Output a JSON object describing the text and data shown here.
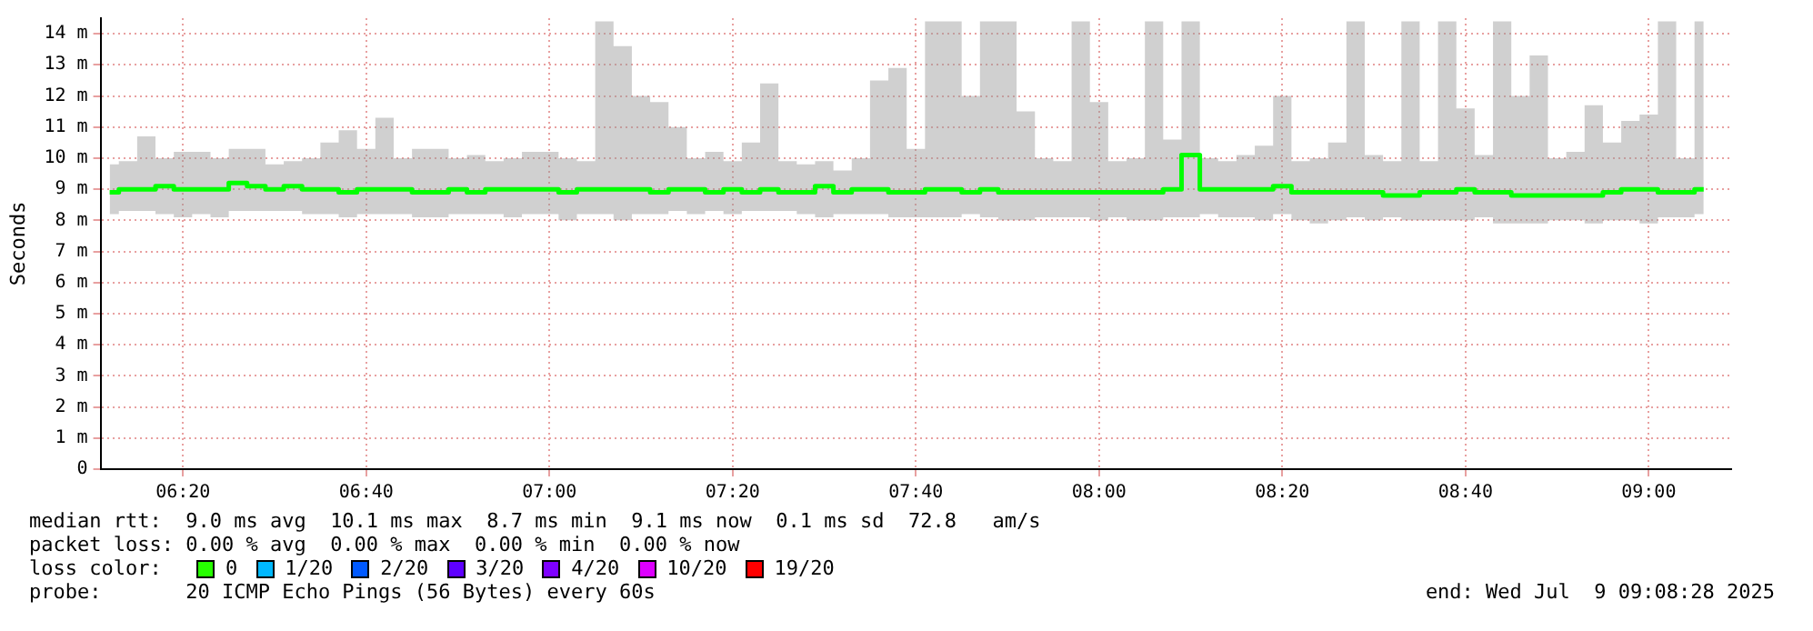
{
  "chart_data": {
    "type": "step",
    "ylabel": "Seconds",
    "grid": true,
    "xlim": [
      "2025-07-09T06:11",
      "2025-07-09T09:09"
    ],
    "xticks": [
      {
        "value": "2025-07-09T06:20",
        "label": "06:20"
      },
      {
        "value": "2025-07-09T06:40",
        "label": "06:40"
      },
      {
        "value": "2025-07-09T07:00",
        "label": "07:00"
      },
      {
        "value": "2025-07-09T07:20",
        "label": "07:20"
      },
      {
        "value": "2025-07-09T07:40",
        "label": "07:40"
      },
      {
        "value": "2025-07-09T08:00",
        "label": "08:00"
      },
      {
        "value": "2025-07-09T08:20",
        "label": "08:20"
      },
      {
        "value": "2025-07-09T08:40",
        "label": "08:40"
      },
      {
        "value": "2025-07-09T09:00",
        "label": "09:00"
      }
    ],
    "ylim": [
      0,
      14.5
    ],
    "yticks": [
      0,
      {
        "value": 1,
        "label": "1 m"
      },
      {
        "value": 2,
        "label": "2 m"
      },
      {
        "value": 3,
        "label": "3 m"
      },
      {
        "value": 4,
        "label": "4 m"
      },
      {
        "value": 5,
        "label": "5 m"
      },
      {
        "value": 6,
        "label": "6 m"
      },
      {
        "value": 7,
        "label": "7 m"
      },
      {
        "value": 8,
        "label": "8 m"
      },
      {
        "value": 9,
        "label": "9 m"
      },
      {
        "value": 10,
        "label": "10 m"
      },
      {
        "value": 11,
        "label": "11 m"
      },
      {
        "value": 12,
        "label": "12 m"
      },
      {
        "value": 13,
        "label": "13 m"
      },
      {
        "value": 14,
        "label": "14 m"
      }
    ],
    "x": [
      "2025-07-09T06:12",
      "2025-07-09T06:14",
      "2025-07-09T06:16",
      "2025-07-09T06:18",
      "2025-07-09T06:20",
      "2025-07-09T06:22",
      "2025-07-09T06:24",
      "2025-07-09T06:26",
      "2025-07-09T06:28",
      "2025-07-09T06:30",
      "2025-07-09T06:32",
      "2025-07-09T06:34",
      "2025-07-09T06:36",
      "2025-07-09T06:38",
      "2025-07-09T06:40",
      "2025-07-09T06:42",
      "2025-07-09T06:44",
      "2025-07-09T06:46",
      "2025-07-09T06:48",
      "2025-07-09T06:50",
      "2025-07-09T06:52",
      "2025-07-09T06:54",
      "2025-07-09T06:56",
      "2025-07-09T06:58",
      "2025-07-09T07:00",
      "2025-07-09T07:02",
      "2025-07-09T07:04",
      "2025-07-09T07:06",
      "2025-07-09T07:08",
      "2025-07-09T07:10",
      "2025-07-09T07:12",
      "2025-07-09T07:14",
      "2025-07-09T07:16",
      "2025-07-09T07:18",
      "2025-07-09T07:20",
      "2025-07-09T07:22",
      "2025-07-09T07:24",
      "2025-07-09T07:26",
      "2025-07-09T07:28",
      "2025-07-09T07:30",
      "2025-07-09T07:32",
      "2025-07-09T07:34",
      "2025-07-09T07:36",
      "2025-07-09T07:38",
      "2025-07-09T07:40",
      "2025-07-09T07:42",
      "2025-07-09T07:44",
      "2025-07-09T07:46",
      "2025-07-09T07:48",
      "2025-07-09T07:50",
      "2025-07-09T07:52",
      "2025-07-09T07:54",
      "2025-07-09T07:56",
      "2025-07-09T07:58",
      "2025-07-09T08:00",
      "2025-07-09T08:02",
      "2025-07-09T08:04",
      "2025-07-09T08:06",
      "2025-07-09T08:08",
      "2025-07-09T08:10",
      "2025-07-09T08:12",
      "2025-07-09T08:14",
      "2025-07-09T08:16",
      "2025-07-09T08:18",
      "2025-07-09T08:20",
      "2025-07-09T08:22",
      "2025-07-09T08:24",
      "2025-07-09T08:26",
      "2025-07-09T08:28",
      "2025-07-09T08:30",
      "2025-07-09T08:32",
      "2025-07-09T08:34",
      "2025-07-09T08:36",
      "2025-07-09T08:38",
      "2025-07-09T08:40",
      "2025-07-09T08:42",
      "2025-07-09T08:44",
      "2025-07-09T08:46",
      "2025-07-09T08:48",
      "2025-07-09T08:50",
      "2025-07-09T08:52",
      "2025-07-09T08:54",
      "2025-07-09T08:56",
      "2025-07-09T08:58",
      "2025-07-09T09:00",
      "2025-07-09T09:02",
      "2025-07-09T09:04",
      "2025-07-09T09:06"
    ],
    "series": [
      {
        "color": "#00ff00",
        "values": [
          8.9,
          9.0,
          9.0,
          9.1,
          9.0,
          9.0,
          9.0,
          9.2,
          9.1,
          9.0,
          9.1,
          9.0,
          9.0,
          8.9,
          9.0,
          9.0,
          9.0,
          8.9,
          8.9,
          9.0,
          8.9,
          9.0,
          9.0,
          9.0,
          9.0,
          8.9,
          9.0,
          9.0,
          9.0,
          9.0,
          8.9,
          9.0,
          9.0,
          8.9,
          9.0,
          8.9,
          9.0,
          8.9,
          8.9,
          9.1,
          8.9,
          9.0,
          9.0,
          8.9,
          8.9,
          9.0,
          9.0,
          8.9,
          9.0,
          8.9,
          8.9,
          8.9,
          8.9,
          8.9,
          8.9,
          8.9,
          8.9,
          8.9,
          9.0,
          10.1,
          9.0,
          9.0,
          9.0,
          9.0,
          9.1,
          8.9,
          8.9,
          8.9,
          8.9,
          8.9,
          8.8,
          8.8,
          8.9,
          8.9,
          9.0,
          8.9,
          8.9,
          8.8,
          8.8,
          8.8,
          8.8,
          8.8,
          8.9,
          9.0,
          9.0,
          8.9,
          8.9,
          9.0
        ],
        "lower": [
          8.2,
          8.3,
          8.3,
          8.2,
          8.1,
          8.2,
          8.1,
          8.3,
          8.3,
          8.3,
          8.3,
          8.2,
          8.2,
          8.1,
          8.2,
          8.2,
          8.2,
          8.1,
          8.1,
          8.2,
          8.2,
          8.2,
          8.1,
          8.2,
          8.2,
          8.0,
          8.2,
          8.2,
          8.0,
          8.2,
          8.2,
          8.3,
          8.2,
          8.3,
          8.2,
          8.3,
          8.3,
          8.3,
          8.2,
          8.1,
          8.2,
          8.2,
          8.2,
          8.1,
          8.1,
          8.1,
          8.1,
          8.2,
          8.1,
          8.0,
          8.0,
          8.1,
          8.1,
          8.1,
          8.0,
          8.1,
          8.0,
          8.0,
          8.1,
          8.1,
          8.2,
          8.1,
          8.1,
          8.0,
          8.2,
          8.0,
          7.9,
          8.0,
          8.1,
          8.0,
          8.1,
          8.0,
          8.0,
          8.0,
          8.0,
          8.1,
          7.9,
          7.9,
          7.9,
          8.0,
          8.0,
          7.9,
          8.0,
          8.0,
          7.9,
          8.1,
          8.1,
          8.2
        ],
        "upper": [
          9.8,
          9.9,
          10.7,
          10.0,
          10.2,
          10.2,
          10.0,
          10.3,
          10.3,
          9.8,
          9.9,
          10.0,
          10.5,
          10.9,
          10.3,
          11.3,
          10.0,
          10.3,
          10.3,
          10.0,
          10.1,
          9.9,
          10.0,
          10.2,
          10.2,
          10.0,
          9.9,
          14.4,
          13.6,
          12.0,
          11.8,
          11.0,
          10.0,
          10.2,
          9.9,
          10.5,
          12.4,
          9.9,
          9.8,
          9.9,
          9.6,
          10.0,
          12.5,
          12.9,
          10.3,
          14.4,
          14.4,
          12.0,
          14.4,
          14.4,
          11.5,
          10.0,
          9.9,
          14.4,
          11.8,
          9.9,
          10.0,
          14.4,
          10.6,
          14.4,
          10.0,
          9.9,
          10.1,
          10.4,
          12.0,
          9.9,
          10.0,
          10.5,
          14.4,
          10.1,
          9.9,
          14.4,
          9.9,
          14.4,
          11.6,
          10.1,
          14.4,
          12.0,
          13.3,
          10.0,
          10.2,
          11.7,
          10.5,
          11.2,
          11.4,
          14.4,
          10.0,
          14.4
        ]
      }
    ],
    "annotations": [
      "median rtt:  9.0 ms avg  10.1 ms max  8.7 ms min  9.1 ms now  0.1 ms sd  72.8   am/s",
      "packet loss: 0.00 % avg  0.00 % max  0.00 % min  0.00 % now",
      "loss color:",
      "0",
      "1/20",
      "2/20",
      "3/20",
      "4/20",
      "10/20",
      "19/20",
      "probe:       20 ICMP Echo Pings (56 Bytes) every 60s",
      "end: Wed Jul  9 09:08:28 2025"
    ]
  }
}
